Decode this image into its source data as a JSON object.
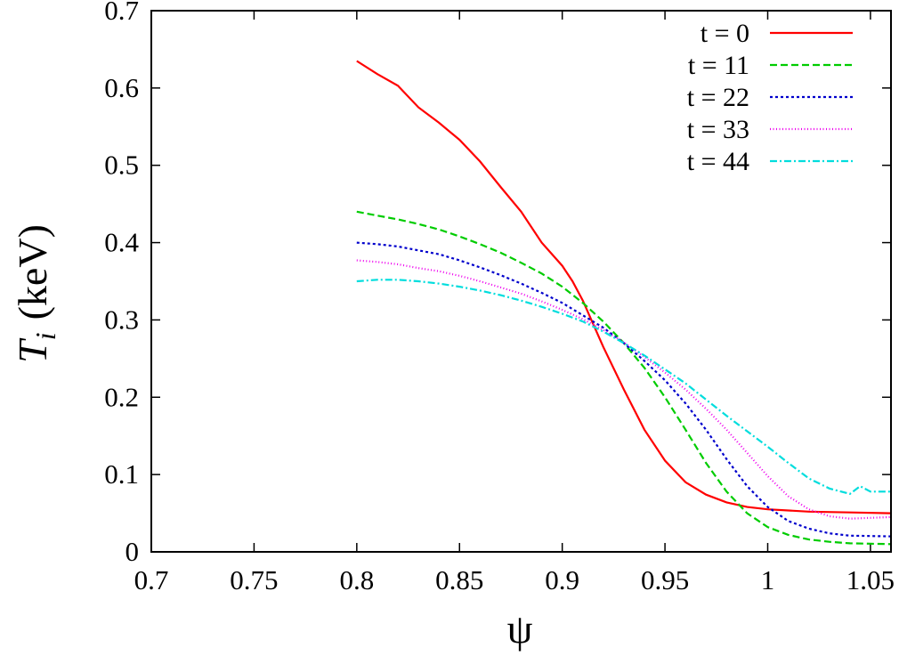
{
  "chart_data": {
    "type": "line",
    "xlabel": "ψ",
    "ylabel": "T_i (keV)",
    "ylabel_main": "T",
    "ylabel_sub": "i",
    "ylabel_unit": "(keV)",
    "xlim": [
      0.7,
      1.06
    ],
    "ylim": [
      0,
      0.7
    ],
    "xticks": [
      0.7,
      0.75,
      0.8,
      0.85,
      0.9,
      0.95,
      1,
      1.05
    ],
    "xtick_labels": [
      "0.7",
      "0.75",
      "0.8",
      "0.85",
      "0.9",
      "0.95",
      "1",
      "1.05"
    ],
    "yticks": [
      0,
      0.1,
      0.2,
      0.3,
      0.4,
      0.5,
      0.6,
      0.7
    ],
    "ytick_labels": [
      "0",
      "0.1",
      "0.2",
      "0.3",
      "0.4",
      "0.5",
      "0.6",
      "0.7"
    ],
    "grid": false,
    "legend_position": "top-right",
    "series": [
      {
        "name": "t = 0",
        "color": "#ff0000",
        "dash": "",
        "x": [
          0.8,
          0.81,
          0.82,
          0.83,
          0.84,
          0.85,
          0.86,
          0.87,
          0.88,
          0.89,
          0.9,
          0.905,
          0.91,
          0.915,
          0.92,
          0.93,
          0.94,
          0.95,
          0.96,
          0.97,
          0.98,
          0.99,
          1.0,
          1.02,
          1.04,
          1.06
        ],
        "y": [
          0.635,
          0.618,
          0.603,
          0.575,
          0.555,
          0.533,
          0.505,
          0.472,
          0.44,
          0.4,
          0.37,
          0.35,
          0.325,
          0.295,
          0.265,
          0.21,
          0.158,
          0.118,
          0.09,
          0.074,
          0.064,
          0.058,
          0.055,
          0.052,
          0.051,
          0.05
        ]
      },
      {
        "name": "t = 11",
        "color": "#00cc00",
        "dash": "8,4",
        "x": [
          0.8,
          0.81,
          0.82,
          0.83,
          0.84,
          0.85,
          0.86,
          0.87,
          0.88,
          0.89,
          0.9,
          0.91,
          0.92,
          0.93,
          0.94,
          0.95,
          0.96,
          0.97,
          0.98,
          0.99,
          1.0,
          1.01,
          1.02,
          1.03,
          1.04,
          1.06
        ],
        "y": [
          0.44,
          0.435,
          0.43,
          0.424,
          0.417,
          0.408,
          0.398,
          0.387,
          0.374,
          0.36,
          0.343,
          0.322,
          0.298,
          0.27,
          0.238,
          0.2,
          0.158,
          0.115,
          0.078,
          0.05,
          0.032,
          0.022,
          0.016,
          0.013,
          0.011,
          0.01
        ]
      },
      {
        "name": "t = 22",
        "color": "#0000cc",
        "dash": "3,3",
        "x": [
          0.8,
          0.81,
          0.82,
          0.83,
          0.84,
          0.85,
          0.86,
          0.87,
          0.88,
          0.89,
          0.9,
          0.91,
          0.92,
          0.93,
          0.94,
          0.95,
          0.96,
          0.97,
          0.98,
          0.99,
          1.0,
          1.01,
          1.02,
          1.03,
          1.04,
          1.06
        ],
        "y": [
          0.4,
          0.398,
          0.395,
          0.39,
          0.385,
          0.377,
          0.368,
          0.358,
          0.347,
          0.335,
          0.322,
          0.306,
          0.29,
          0.27,
          0.247,
          0.222,
          0.192,
          0.158,
          0.12,
          0.085,
          0.058,
          0.04,
          0.03,
          0.024,
          0.021,
          0.02
        ]
      },
      {
        "name": "t = 33",
        "color": "#ee00ee",
        "dash": "1,2.5",
        "x": [
          0.8,
          0.81,
          0.82,
          0.83,
          0.84,
          0.85,
          0.86,
          0.87,
          0.88,
          0.89,
          0.9,
          0.91,
          0.92,
          0.93,
          0.94,
          0.95,
          0.96,
          0.97,
          0.98,
          0.99,
          1.0,
          1.01,
          1.02,
          1.03,
          1.04,
          1.05,
          1.06
        ],
        "y": [
          0.377,
          0.375,
          0.372,
          0.367,
          0.363,
          0.357,
          0.35,
          0.342,
          0.334,
          0.324,
          0.313,
          0.301,
          0.287,
          0.271,
          0.252,
          0.232,
          0.21,
          0.185,
          0.158,
          0.128,
          0.098,
          0.072,
          0.055,
          0.046,
          0.043,
          0.044,
          0.045
        ]
      },
      {
        "name": "t = 44",
        "color": "#00dddd",
        "dash": "8,3,2,3",
        "x": [
          0.8,
          0.81,
          0.82,
          0.83,
          0.84,
          0.85,
          0.86,
          0.87,
          0.88,
          0.89,
          0.9,
          0.91,
          0.92,
          0.93,
          0.94,
          0.95,
          0.96,
          0.97,
          0.98,
          0.99,
          1.0,
          1.01,
          1.02,
          1.03,
          1.04,
          1.045,
          1.05,
          1.06
        ],
        "y": [
          0.35,
          0.352,
          0.352,
          0.35,
          0.347,
          0.343,
          0.338,
          0.332,
          0.325,
          0.317,
          0.308,
          0.298,
          0.285,
          0.27,
          0.254,
          0.236,
          0.218,
          0.197,
          0.176,
          0.156,
          0.136,
          0.115,
          0.095,
          0.082,
          0.075,
          0.085,
          0.078,
          0.078
        ]
      }
    ]
  }
}
